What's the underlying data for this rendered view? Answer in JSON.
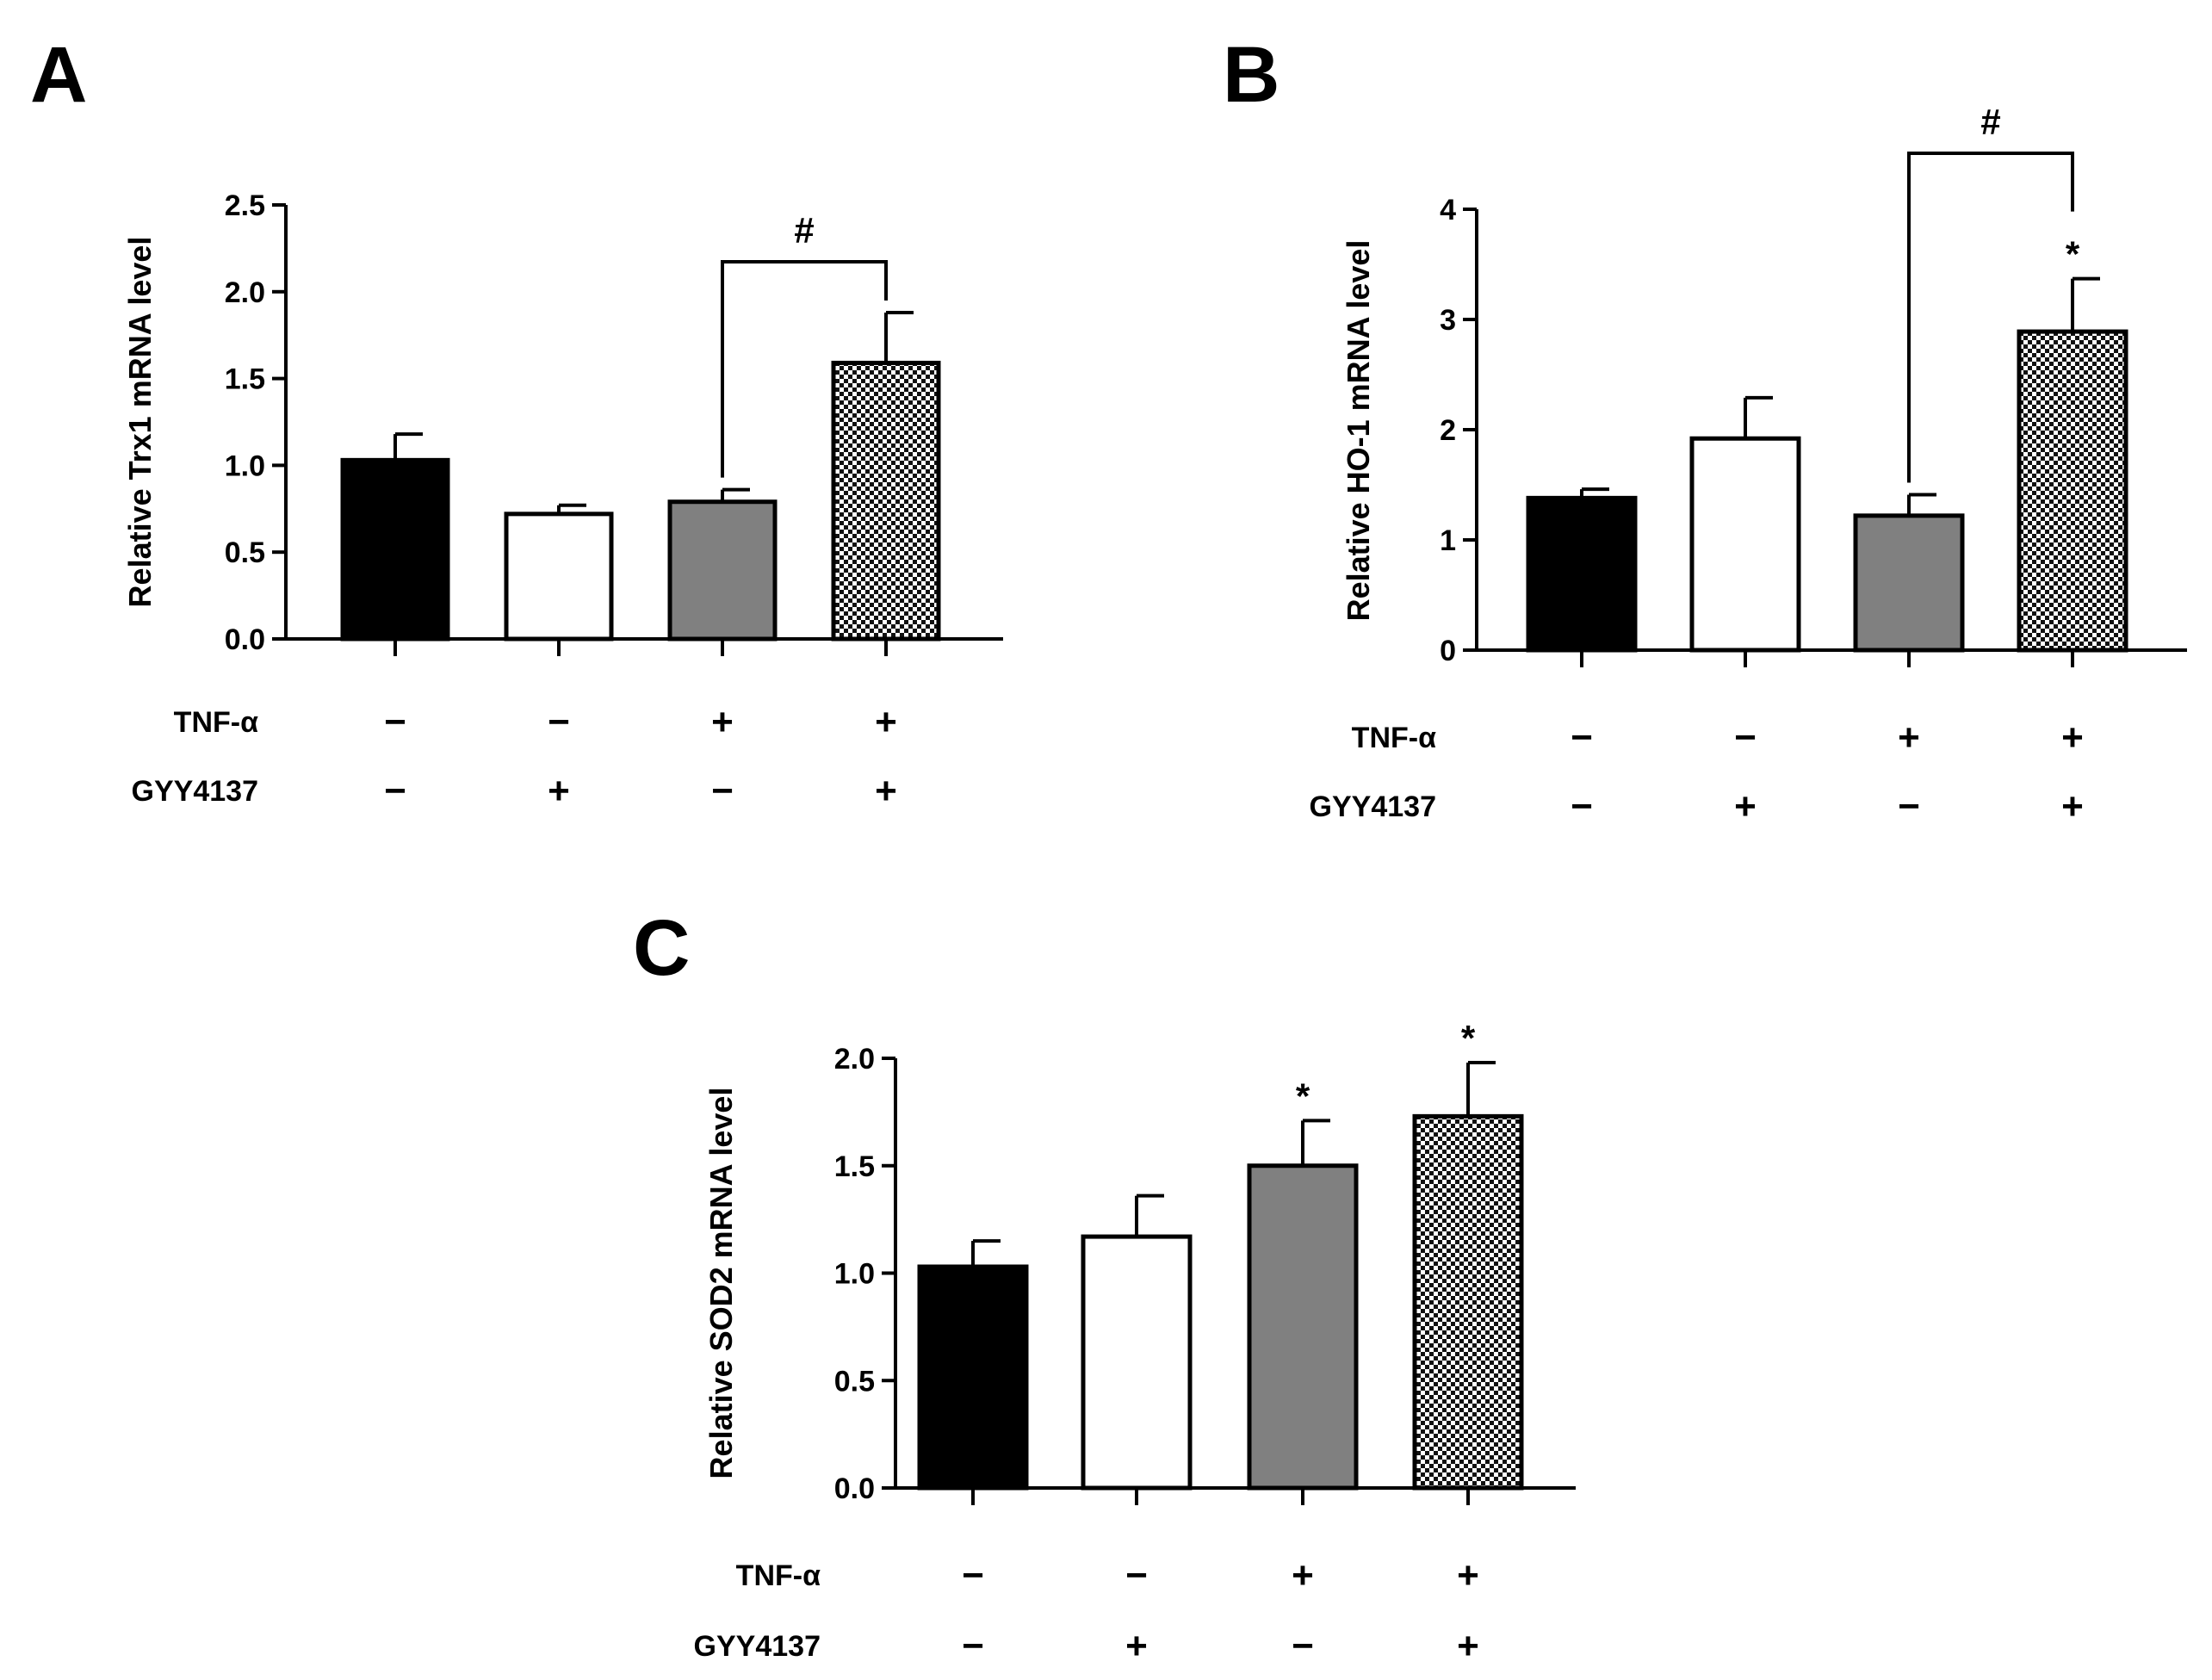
{
  "chart_data": [
    {
      "type": "bar",
      "panel": "A",
      "ylabel": "Relative Trx1 mRNA level",
      "ylim": [
        0,
        2.5
      ],
      "yticks": [
        "0.0",
        "0.5",
        "1.0",
        "1.5",
        "2.0",
        "2.5"
      ],
      "categories": [
        "TNF-α −/GYY4137 −",
        "TNF-α −/GYY4137 +",
        "TNF-α +/GYY4137 −",
        "TNF-α +/GYY4137 +"
      ],
      "values": [
        1.03,
        0.72,
        0.79,
        1.59
      ],
      "errors": [
        0.15,
        0.05,
        0.07,
        0.29
      ],
      "fills": [
        "black",
        "white",
        "gray",
        "checker"
      ],
      "stars": [
        "",
        "",
        "",
        ""
      ],
      "bracket": {
        "from": 2,
        "to": 3,
        "label": "#"
      },
      "rows": [
        {
          "label": "TNF-α",
          "signs": [
            "−",
            "−",
            "+",
            "+"
          ]
        },
        {
          "label": "GYY4137",
          "signs": [
            "−",
            "+",
            "−",
            "+"
          ]
        }
      ]
    },
    {
      "type": "bar",
      "panel": "B",
      "ylabel": "Relative HO-1 mRNA level",
      "ylim": [
        0,
        4
      ],
      "yticks": [
        "0",
        "1",
        "2",
        "3",
        "4"
      ],
      "categories": [
        "TNF-α −/GYY4137 −",
        "TNF-α −/GYY4137 +",
        "TNF-α +/GYY4137 −",
        "TNF-α +/GYY4137 +"
      ],
      "values": [
        1.38,
        1.92,
        1.22,
        2.89
      ],
      "errors": [
        0.08,
        0.37,
        0.19,
        0.48
      ],
      "fills": [
        "black",
        "white",
        "gray",
        "checker"
      ],
      "stars": [
        "",
        "",
        "",
        "*"
      ],
      "bracket": {
        "from": 2,
        "to": 3,
        "label": "#"
      },
      "rows": [
        {
          "label": "TNF-α",
          "signs": [
            "−",
            "−",
            "+",
            "+"
          ]
        },
        {
          "label": "GYY4137",
          "signs": [
            "−",
            "+",
            "−",
            "+"
          ]
        }
      ]
    },
    {
      "type": "bar",
      "panel": "C",
      "ylabel": "Relative SOD2 mRNA level",
      "ylim": [
        0,
        2.0
      ],
      "yticks": [
        "0.0",
        "0.5",
        "1.0",
        "1.5",
        "2.0"
      ],
      "categories": [
        "TNF-α −/GYY4137 −",
        "TNF-α −/GYY4137 +",
        "TNF-α +/GYY4137 −",
        "TNF-α +/GYY4137 +"
      ],
      "values": [
        1.03,
        1.17,
        1.5,
        1.73
      ],
      "errors": [
        0.12,
        0.19,
        0.21,
        0.25
      ],
      "fills": [
        "black",
        "white",
        "gray",
        "checker"
      ],
      "stars": [
        "",
        "",
        "*",
        "*"
      ],
      "bracket": null,
      "rows": [
        {
          "label": "TNF-α",
          "signs": [
            "−",
            "−",
            "+",
            "+"
          ]
        },
        {
          "label": "GYY4137",
          "signs": [
            "−",
            "+",
            "−",
            "+"
          ]
        }
      ]
    }
  ],
  "colors": {
    "black": "#000000",
    "white": "#ffffff",
    "gray": "#808080",
    "checker_dark": "#111111",
    "checker_light": "#ffffff"
  }
}
